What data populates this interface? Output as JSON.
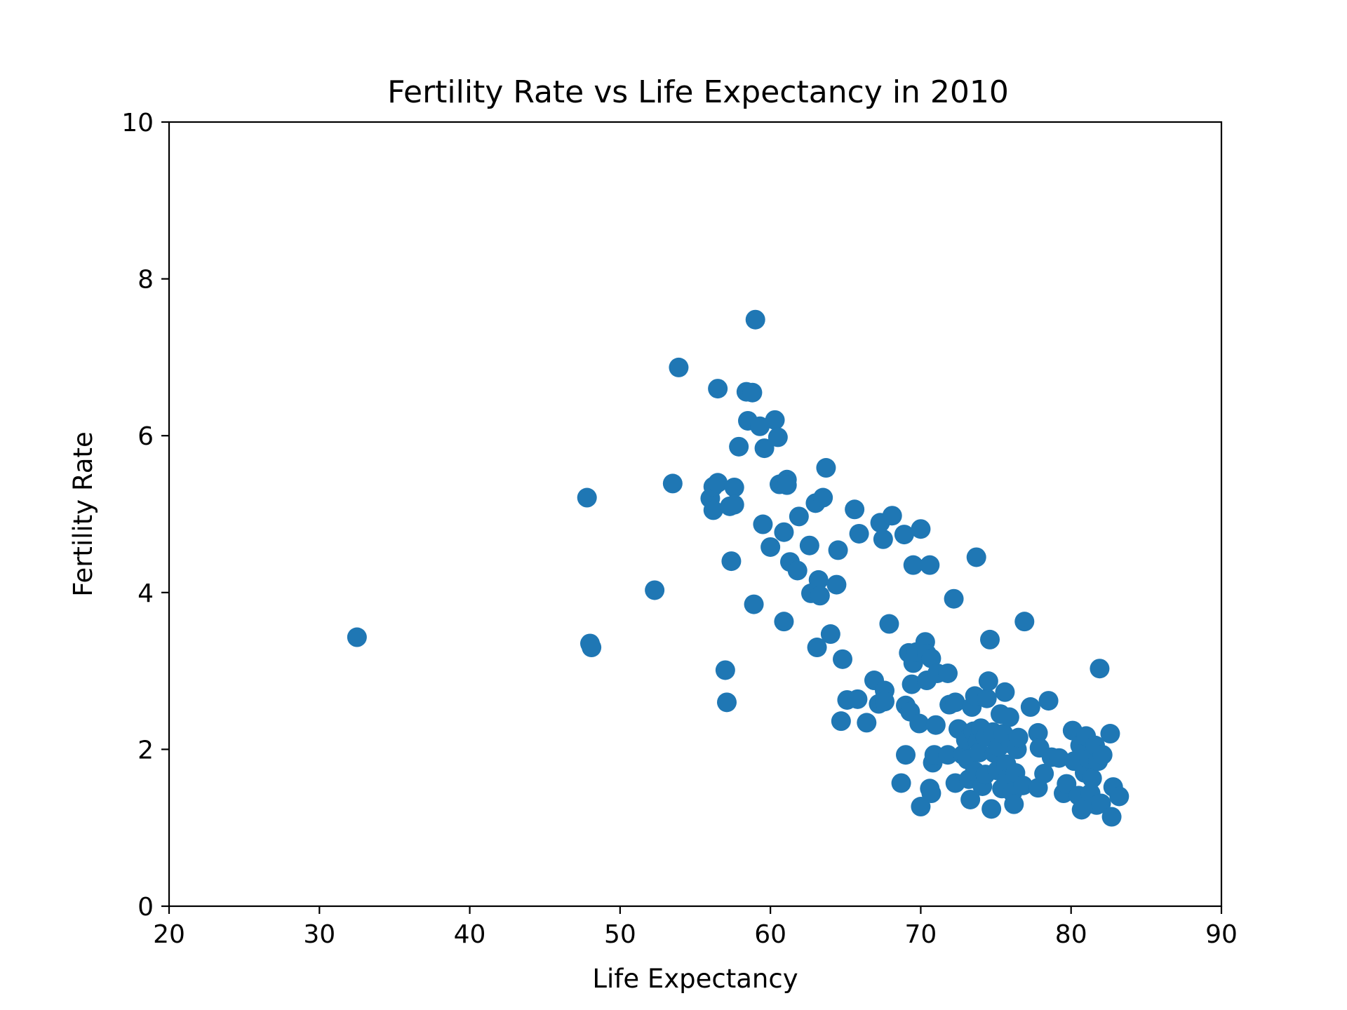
{
  "chart_data": {
    "type": "scatter",
    "title": "Fertility Rate vs Life Expectancy in 2010",
    "xlabel": "Life Expectancy",
    "ylabel": "Fertility Rate",
    "xlim": [
      20,
      90
    ],
    "ylim": [
      0,
      10
    ],
    "xticks": [
      20,
      30,
      40,
      50,
      60,
      70,
      80,
      90
    ],
    "yticks": [
      0,
      2,
      4,
      6,
      8,
      10
    ],
    "grid": false,
    "marker_color": "#1f77b4",
    "points": [
      [
        32.5,
        3.43
      ],
      [
        47.8,
        5.21
      ],
      [
        48.0,
        3.35
      ],
      [
        48.1,
        3.3
      ],
      [
        52.3,
        4.03
      ],
      [
        53.5,
        5.39
      ],
      [
        53.9,
        6.87
      ],
      [
        56.0,
        5.2
      ],
      [
        56.2,
        5.35
      ],
      [
        56.2,
        5.05
      ],
      [
        56.5,
        5.4
      ],
      [
        56.5,
        6.6
      ],
      [
        57.0,
        3.01
      ],
      [
        57.1,
        2.6
      ],
      [
        57.3,
        5.1
      ],
      [
        57.4,
        4.4
      ],
      [
        57.6,
        5.34
      ],
      [
        57.6,
        5.12
      ],
      [
        57.9,
        5.86
      ],
      [
        58.4,
        6.56
      ],
      [
        58.5,
        6.19
      ],
      [
        58.8,
        6.55
      ],
      [
        58.9,
        3.85
      ],
      [
        59.0,
        7.48
      ],
      [
        59.3,
        6.12
      ],
      [
        59.5,
        4.87
      ],
      [
        59.6,
        5.84
      ],
      [
        60.0,
        4.58
      ],
      [
        60.3,
        6.2
      ],
      [
        60.5,
        5.98
      ],
      [
        60.6,
        5.38
      ],
      [
        60.9,
        3.63
      ],
      [
        60.9,
        4.77
      ],
      [
        61.1,
        5.44
      ],
      [
        61.1,
        5.37
      ],
      [
        61.3,
        4.39
      ],
      [
        61.8,
        4.28
      ],
      [
        61.9,
        4.97
      ],
      [
        62.6,
        4.6
      ],
      [
        62.7,
        3.99
      ],
      [
        63.0,
        5.14
      ],
      [
        63.1,
        3.3
      ],
      [
        63.2,
        4.16
      ],
      [
        63.3,
        3.96
      ],
      [
        63.5,
        5.21
      ],
      [
        63.7,
        5.59
      ],
      [
        64.0,
        3.47
      ],
      [
        64.4,
        4.1
      ],
      [
        64.5,
        4.54
      ],
      [
        64.7,
        2.36
      ],
      [
        64.8,
        3.15
      ],
      [
        65.1,
        2.63
      ],
      [
        65.6,
        5.06
      ],
      [
        65.8,
        2.64
      ],
      [
        65.9,
        4.75
      ],
      [
        66.4,
        2.34
      ],
      [
        66.9,
        2.88
      ],
      [
        67.2,
        2.58
      ],
      [
        67.3,
        4.89
      ],
      [
        67.5,
        4.68
      ],
      [
        67.6,
        2.75
      ],
      [
        67.6,
        2.61
      ],
      [
        67.9,
        3.6
      ],
      [
        68.1,
        4.98
      ],
      [
        68.7,
        1.57
      ],
      [
        68.9,
        4.74
      ],
      [
        69.0,
        1.93
      ],
      [
        69.0,
        2.56
      ],
      [
        69.2,
        3.23
      ],
      [
        69.3,
        2.48
      ],
      [
        69.4,
        2.83
      ],
      [
        69.5,
        4.35
      ],
      [
        69.5,
        3.1
      ],
      [
        69.7,
        3.24
      ],
      [
        69.9,
        2.33
      ],
      [
        70.0,
        1.27
      ],
      [
        70.0,
        4.81
      ],
      [
        70.3,
        3.37
      ],
      [
        70.4,
        3.22
      ],
      [
        70.4,
        2.88
      ],
      [
        70.6,
        4.35
      ],
      [
        70.6,
        1.5
      ],
      [
        70.7,
        1.44
      ],
      [
        70.7,
        3.16
      ],
      [
        70.8,
        1.83
      ],
      [
        70.9,
        1.93
      ],
      [
        71.0,
        2.31
      ],
      [
        71.1,
        2.97
      ],
      [
        71.8,
        2.97
      ],
      [
        71.8,
        1.93
      ],
      [
        71.9,
        2.57
      ],
      [
        72.2,
        3.92
      ],
      [
        72.3,
        2.6
      ],
      [
        72.3,
        1.57
      ],
      [
        72.5,
        2.26
      ],
      [
        72.8,
        1.93
      ],
      [
        73.0,
        2.12
      ],
      [
        73.1,
        1.87
      ],
      [
        73.2,
        1.62
      ],
      [
        73.3,
        1.36
      ],
      [
        73.4,
        2.54
      ],
      [
        73.5,
        2.23
      ],
      [
        73.6,
        1.72
      ],
      [
        73.6,
        2.68
      ],
      [
        73.7,
        4.45
      ],
      [
        73.8,
        2.1
      ],
      [
        73.9,
        1.96
      ],
      [
        74.0,
        2.27
      ],
      [
        74.1,
        1.53
      ],
      [
        74.3,
        2.16
      ],
      [
        74.3,
        1.68
      ],
      [
        74.4,
        2.65
      ],
      [
        74.5,
        2.87
      ],
      [
        74.6,
        3.4
      ],
      [
        74.7,
        1.24
      ],
      [
        74.8,
        2.22
      ],
      [
        74.9,
        1.95
      ],
      [
        75.1,
        1.73
      ],
      [
        75.2,
        2.03
      ],
      [
        75.3,
        2.45
      ],
      [
        75.4,
        1.5
      ],
      [
        75.5,
        2.2
      ],
      [
        75.6,
        2.73
      ],
      [
        75.7,
        1.81
      ],
      [
        75.8,
        1.63
      ],
      [
        75.9,
        2.41
      ],
      [
        76.0,
        2.07
      ],
      [
        76.1,
        1.45
      ],
      [
        76.2,
        1.3
      ],
      [
        76.3,
        1.7
      ],
      [
        76.4,
        2.0
      ],
      [
        76.5,
        2.15
      ],
      [
        76.8,
        1.54
      ],
      [
        76.9,
        3.63
      ],
      [
        77.3,
        2.54
      ],
      [
        77.8,
        2.21
      ],
      [
        77.8,
        1.51
      ],
      [
        77.9,
        2.02
      ],
      [
        78.2,
        1.69
      ],
      [
        78.5,
        2.62
      ],
      [
        78.7,
        1.9
      ],
      [
        79.2,
        1.89
      ],
      [
        79.5,
        1.44
      ],
      [
        79.7,
        1.56
      ],
      [
        80.1,
        2.24
      ],
      [
        80.2,
        1.85
      ],
      [
        80.5,
        1.41
      ],
      [
        80.6,
        2.05
      ],
      [
        80.7,
        1.23
      ],
      [
        80.8,
        1.95
      ],
      [
        80.9,
        1.7
      ],
      [
        81.0,
        2.17
      ],
      [
        81.1,
        1.3
      ],
      [
        81.2,
        1.88
      ],
      [
        81.3,
        1.44
      ],
      [
        81.4,
        1.63
      ],
      [
        81.6,
        2.05
      ],
      [
        81.7,
        1.29
      ],
      [
        81.8,
        1.85
      ],
      [
        81.9,
        3.03
      ],
      [
        82.0,
        1.31
      ],
      [
        82.1,
        1.93
      ],
      [
        82.6,
        2.2
      ],
      [
        82.7,
        1.14
      ],
      [
        82.8,
        1.52
      ],
      [
        83.2,
        1.4
      ]
    ]
  }
}
